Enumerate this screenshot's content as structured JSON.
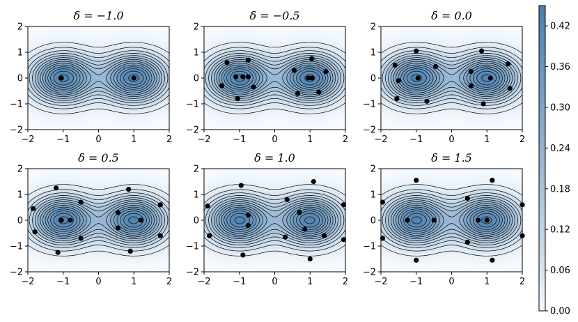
{
  "chart_data": {
    "type": "contour",
    "shared_axes": {
      "xlim": [
        -2,
        2
      ],
      "ylim": [
        -2,
        2
      ],
      "xticks": [
        -2,
        -1,
        0,
        1,
        2
      ],
      "yticks": [
        -2,
        -1,
        0,
        1,
        2
      ],
      "xtick_labels": [
        "−2",
        "−1",
        "0",
        "1",
        "2"
      ],
      "ytick_labels": [
        "−2",
        "−1",
        "0",
        "1",
        "2"
      ]
    },
    "density": {
      "modes": [
        [
          -1,
          0
        ],
        [
          1,
          0
        ]
      ],
      "colormap": "Blues",
      "cmap_low": "#f7fbff",
      "cmap_high": "#4b7fae",
      "line_color": "#000000"
    },
    "colorbar": {
      "vmin": 0,
      "vmax": 0.45,
      "ticks": [
        0,
        0.06,
        0.12,
        0.18,
        0.24,
        0.3,
        0.36,
        0.42
      ],
      "tick_labels": [
        "0.00",
        "0.06",
        "0.12",
        "0.18",
        "0.24",
        "0.30",
        "0.36",
        "0.42"
      ]
    },
    "panels": [
      {
        "title": "δ = −1.0",
        "points": [
          [
            -1.05,
            0.0
          ],
          [
            1.0,
            0.0
          ]
        ]
      },
      {
        "title": "δ = −0.5",
        "points": [
          [
            -1.5,
            -0.3
          ],
          [
            -1.35,
            0.6
          ],
          [
            -1.1,
            0.05
          ],
          [
            -1.05,
            -0.8
          ],
          [
            -0.9,
            0.05
          ],
          [
            -0.75,
            0.7
          ],
          [
            -0.75,
            0.05
          ],
          [
            -0.6,
            -0.35
          ],
          [
            0.55,
            0.3
          ],
          [
            0.65,
            -0.6
          ],
          [
            0.95,
            0.0
          ],
          [
            1.05,
            0.75
          ],
          [
            1.05,
            0.0
          ],
          [
            1.25,
            -0.55
          ],
          [
            1.45,
            0.25
          ]
        ]
      },
      {
        "title": "δ = 0.0",
        "points": [
          [
            -1.6,
            0.5
          ],
          [
            -1.55,
            -0.8
          ],
          [
            -1.5,
            -0.1
          ],
          [
            -1.0,
            1.05
          ],
          [
            -0.95,
            0.0
          ],
          [
            -0.7,
            -0.9
          ],
          [
            -0.45,
            0.45
          ],
          [
            0.55,
            0.25
          ],
          [
            0.55,
            -0.3
          ],
          [
            0.85,
            1.05
          ],
          [
            0.9,
            -1.0
          ],
          [
            1.1,
            0.0
          ],
          [
            1.6,
            0.55
          ],
          [
            1.65,
            -0.4
          ]
        ]
      },
      {
        "title": "δ = 0.5",
        "points": [
          [
            -1.85,
            0.45
          ],
          [
            -1.8,
            -0.45
          ],
          [
            -1.2,
            1.25
          ],
          [
            -1.15,
            -1.25
          ],
          [
            -1.05,
            0.0
          ],
          [
            -0.8,
            0.0
          ],
          [
            -0.5,
            0.7
          ],
          [
            -0.5,
            -0.7
          ],
          [
            0.55,
            0.3
          ],
          [
            0.55,
            -0.3
          ],
          [
            0.85,
            1.2
          ],
          [
            0.9,
            -1.2
          ],
          [
            1.2,
            0.0
          ],
          [
            1.75,
            0.6
          ],
          [
            1.75,
            -0.6
          ]
        ]
      },
      {
        "title": "δ = 1.0",
        "points": [
          [
            -1.9,
            0.55
          ],
          [
            -1.85,
            -0.6
          ],
          [
            -0.95,
            1.35
          ],
          [
            -0.9,
            -1.35
          ],
          [
            -0.75,
            0.2
          ],
          [
            -0.75,
            -0.2
          ],
          [
            0.35,
            0.8
          ],
          [
            0.3,
            -0.65
          ],
          [
            0.7,
            0.3
          ],
          [
            0.85,
            -0.35
          ],
          [
            1.0,
            -1.5
          ],
          [
            1.1,
            1.5
          ],
          [
            1.4,
            -0.6
          ],
          [
            1.95,
            0.6
          ],
          [
            1.95,
            -0.75
          ]
        ]
      },
      {
        "title": "δ = 1.5",
        "points": [
          [
            -1.95,
            0.7
          ],
          [
            -1.95,
            -0.7
          ],
          [
            -1.0,
            1.55
          ],
          [
            -1.0,
            -1.55
          ],
          [
            -1.25,
            0.0
          ],
          [
            -0.5,
            0.0
          ],
          [
            0.45,
            0.85
          ],
          [
            0.45,
            -0.85
          ],
          [
            0.75,
            0.0
          ],
          [
            1.0,
            0.0
          ],
          [
            1.15,
            1.55
          ],
          [
            1.15,
            -1.55
          ],
          [
            2.0,
            0.6
          ],
          [
            2.0,
            -0.6
          ]
        ]
      }
    ]
  }
}
